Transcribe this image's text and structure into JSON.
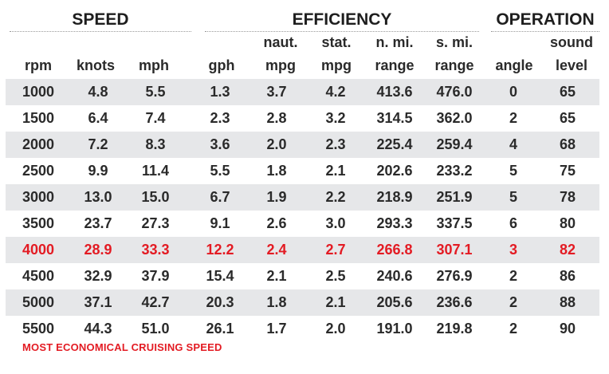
{
  "groups": {
    "speed": "SPEED",
    "efficiency": "EFFICIENCY",
    "operation": "OPERATION"
  },
  "subheads": {
    "rpm": "rpm",
    "knots": "knots",
    "mph": "mph",
    "gph": "gph",
    "naut_mpg_top": "naut.",
    "naut_mpg_bottom": "mpg",
    "stat_mpg_top": "stat.",
    "stat_mpg_bottom": "mpg",
    "nmi_range_top": "n. mi.",
    "nmi_range_bottom": "range",
    "smi_range_top": "s. mi.",
    "smi_range_bottom": "range",
    "angle": "angle",
    "sound_level_top": "sound",
    "sound_level_bottom": "level"
  },
  "rows": [
    [
      "1000",
      "4.8",
      "5.5",
      "1.3",
      "3.7",
      "4.2",
      "413.6",
      "476.0",
      "0",
      "65"
    ],
    [
      "1500",
      "6.4",
      "7.4",
      "2.3",
      "2.8",
      "3.2",
      "314.5",
      "362.0",
      "2",
      "65"
    ],
    [
      "2000",
      "7.2",
      "8.3",
      "3.6",
      "2.0",
      "2.3",
      "225.4",
      "259.4",
      "4",
      "68"
    ],
    [
      "2500",
      "9.9",
      "11.4",
      "5.5",
      "1.8",
      "2.1",
      "202.6",
      "233.2",
      "5",
      "75"
    ],
    [
      "3000",
      "13.0",
      "15.0",
      "6.7",
      "1.9",
      "2.2",
      "218.9",
      "251.9",
      "5",
      "78"
    ],
    [
      "3500",
      "23.7",
      "27.3",
      "9.1",
      "2.6",
      "3.0",
      "293.3",
      "337.5",
      "6",
      "80"
    ],
    [
      "4000",
      "28.9",
      "33.3",
      "12.2",
      "2.4",
      "2.7",
      "266.8",
      "307.1",
      "3",
      "82"
    ],
    [
      "4500",
      "32.9",
      "37.9",
      "15.4",
      "2.1",
      "2.5",
      "240.6",
      "276.9",
      "2",
      "86"
    ],
    [
      "5000",
      "37.1",
      "42.7",
      "20.3",
      "1.8",
      "2.1",
      "205.6",
      "236.6",
      "2",
      "88"
    ],
    [
      "5500",
      "44.3",
      "51.0",
      "26.1",
      "1.7",
      "2.0",
      "191.0",
      "219.8",
      "2",
      "90"
    ]
  ],
  "highlight_row": 6,
  "footnote": "MOST ECONOMICAL CRUISING SPEED",
  "colors": {
    "highlight": "#e31b23",
    "shade": "#e6e7e9",
    "text": "#2a2a2a"
  }
}
